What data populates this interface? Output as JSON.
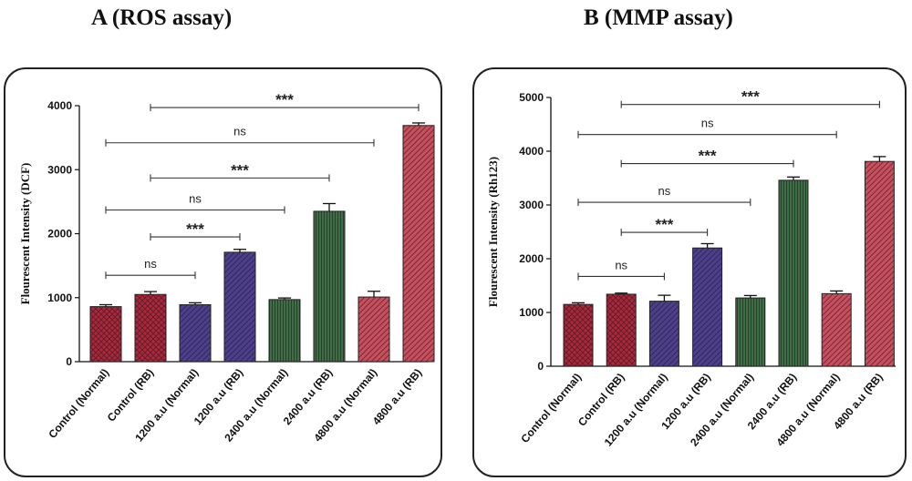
{
  "titles": {
    "a": "A (ROS assay)",
    "b": "B (MMP assay)"
  },
  "colors": {
    "red": "#b0263a",
    "purple": "#4d3f8c",
    "green": "#3d6e45",
    "pink": "#c8505e"
  },
  "chart_data": [
    {
      "type": "bar",
      "title": "A (ROS assay)",
      "ylabel": "Flourescent Intensity (DCF)",
      "ylim": [
        0,
        4000
      ],
      "yticks": [
        0,
        1000,
        2000,
        3000,
        4000
      ],
      "categories": [
        "Control (Normal)",
        "Control  (RB)",
        "1200 a.u (Normal)",
        "1200 a.u (RB)",
        "2400 a.u (Normal)",
        "2400 a.u (RB)",
        "4800 a.u (Normal)",
        "4800 a.u (RB)"
      ],
      "values": [
        860,
        1050,
        890,
        1710,
        970,
        2350,
        1010,
        3690
      ],
      "errors": [
        30,
        45,
        30,
        45,
        25,
        120,
        90,
        40
      ],
      "bar_colors": [
        "red",
        "red",
        "purple",
        "purple",
        "green",
        "green",
        "pink",
        "pink"
      ],
      "bar_patterns": [
        "cross",
        "cross",
        "diag",
        "diag",
        "vert",
        "vert",
        "diag",
        "diag"
      ],
      "comparisons": [
        {
          "from": 0,
          "to": 2,
          "label": "ns",
          "y": 1350
        },
        {
          "from": 1,
          "to": 3,
          "label": "***",
          "y": 1950
        },
        {
          "from": 0,
          "to": 4,
          "label": "ns",
          "y": 2370
        },
        {
          "from": 1,
          "to": 5,
          "label": "***",
          "y": 2870
        },
        {
          "from": 0,
          "to": 6,
          "label": "ns",
          "y": 3420
        },
        {
          "from": 1,
          "to": 7,
          "label": "***",
          "y": 3970
        }
      ]
    },
    {
      "type": "bar",
      "title": "B (MMP assay)",
      "ylabel": "Flourescent Intensity (Rh123)",
      "ylim": [
        0,
        5000
      ],
      "yticks": [
        0,
        1000,
        2000,
        3000,
        4000,
        5000
      ],
      "categories": [
        "Control (Normal)",
        "Control (RB)",
        "1200 a.u (Normal)",
        "1200 a.u (RB)",
        "2400 a.u (Normal)",
        "2400 a.u (RB)",
        "4800 a.u (Normal)",
        "4800 a.u (RB)"
      ],
      "values": [
        1150,
        1340,
        1210,
        2200,
        1270,
        3460,
        1350,
        3810
      ],
      "errors": [
        30,
        20,
        110,
        80,
        45,
        60,
        50,
        90
      ],
      "bar_colors": [
        "red",
        "red",
        "purple",
        "purple",
        "green",
        "green",
        "pink",
        "pink"
      ],
      "bar_patterns": [
        "cross",
        "cross",
        "diag",
        "diag",
        "vert",
        "vert",
        "diag",
        "diag"
      ],
      "comparisons": [
        {
          "from": 0,
          "to": 2,
          "label": "ns",
          "y": 1670
        },
        {
          "from": 1,
          "to": 3,
          "label": "***",
          "y": 2490
        },
        {
          "from": 0,
          "to": 4,
          "label": "ns",
          "y": 3050
        },
        {
          "from": 1,
          "to": 5,
          "label": "***",
          "y": 3770
        },
        {
          "from": 0,
          "to": 6,
          "label": "ns",
          "y": 4310
        },
        {
          "from": 1,
          "to": 7,
          "label": "***",
          "y": 4870
        }
      ]
    }
  ]
}
